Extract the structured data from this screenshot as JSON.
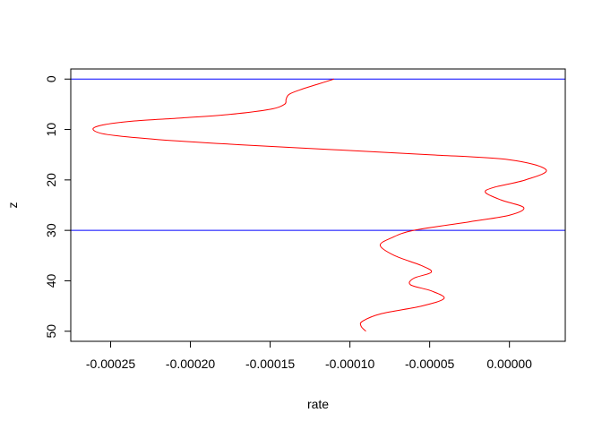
{
  "chart_data": {
    "type": "line",
    "title": "",
    "xlabel": "rate",
    "ylabel": "z",
    "xlim": [
      -0.000275,
      3.5e-05
    ],
    "ylim": [
      52,
      -2
    ],
    "y_reversed": true,
    "grid": false,
    "legend": "none",
    "x_ticks": [
      -0.00025,
      -0.0002,
      -0.00015,
      -0.0001,
      -5e-05,
      0
    ],
    "x_tick_labels": [
      "-0.00025",
      "-0.00020",
      "-0.00015",
      "-0.00010",
      "-0.00005",
      "0.00000"
    ],
    "y_ticks": [
      0,
      10,
      20,
      30,
      40,
      50
    ],
    "y_tick_labels": [
      "0",
      "10",
      "20",
      "30",
      "40",
      "50"
    ],
    "hlines": [
      {
        "y": 0,
        "color": "#0000ff"
      },
      {
        "y": 30,
        "color": "#0000ff"
      }
    ],
    "series": [
      {
        "color": "#ff0000",
        "points": [
          [
            -0.00011,
            0
          ],
          [
            -0.00012,
            1
          ],
          [
            -0.00013,
            2
          ],
          [
            -0.000138,
            3
          ],
          [
            -0.00014,
            4
          ],
          [
            -0.000141,
            5
          ],
          [
            -0.00015,
            6
          ],
          [
            -0.000175,
            7
          ],
          [
            -0.000205,
            7.7
          ],
          [
            -0.000235,
            8.3
          ],
          [
            -0.000255,
            9.1
          ],
          [
            -0.000261,
            10
          ],
          [
            -0.000252,
            11
          ],
          [
            -0.00022,
            12
          ],
          [
            -0.00017,
            13
          ],
          [
            -0.00011,
            14
          ],
          [
            -5e-05,
            15
          ],
          [
            0.0,
            16
          ],
          [
            2.3e-05,
            18
          ],
          [
            1e-05,
            20
          ],
          [
            -1e-05,
            21.5
          ],
          [
            -1.5e-05,
            22.5
          ],
          [
            -5e-06,
            24
          ],
          [
            9e-06,
            25.5
          ],
          [
            0.0,
            27
          ],
          [
            -2.5e-05,
            28.3
          ],
          [
            -6e-05,
            30
          ],
          [
            -7.4e-05,
            31.5
          ],
          [
            -8.1e-05,
            33
          ],
          [
            -7.2e-05,
            35
          ],
          [
            -5.5e-05,
            37
          ],
          [
            -4.9e-05,
            38.3
          ],
          [
            -6e-05,
            39.5
          ],
          [
            -6.2e-05,
            40.8
          ],
          [
            -4.9e-05,
            42
          ],
          [
            -4.1e-05,
            43.5
          ],
          [
            -5.5e-05,
            45
          ],
          [
            -8e-05,
            46.5
          ],
          [
            -9.2e-05,
            48
          ],
          [
            -9.3e-05,
            49
          ],
          [
            -9e-05,
            50
          ]
        ]
      }
    ]
  }
}
